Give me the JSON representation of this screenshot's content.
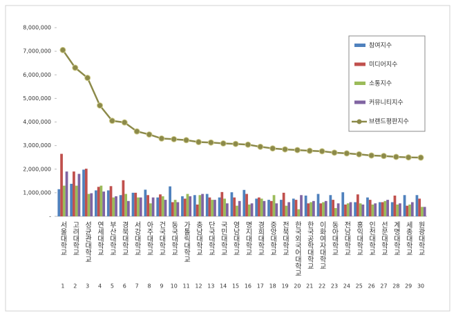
{
  "chart_data": {
    "type": "bar-line",
    "categories": [
      "서울대학교",
      "고려대학교",
      "성균관대학교",
      "연세대학교",
      "부산대학교",
      "경북대학교",
      "서강대학교",
      "아주대학교",
      "건국대학교",
      "동국대학교",
      "가톨릭대학교",
      "충남대학교",
      "단국대학교",
      "국민대학교",
      "영남대학교",
      "명지대학교",
      "경희대학교",
      "중앙대학교",
      "전북대학교",
      "한국외국어대학교",
      "한국공학대학교",
      "이화여자대학교",
      "동아대학교",
      "전남대학교",
      "홍익대학교",
      "인천대학교",
      "선문대학교",
      "계명대학교",
      "세종대학교",
      "원광대학교"
    ],
    "ranks": [
      1,
      2,
      3,
      4,
      5,
      6,
      7,
      8,
      9,
      10,
      11,
      12,
      13,
      14,
      15,
      16,
      17,
      18,
      19,
      20,
      21,
      22,
      23,
      24,
      25,
      26,
      27,
      28,
      29,
      30
    ],
    "series": [
      {
        "name": "참여지수",
        "type": "bar",
        "color": "#4f81bd",
        "values": [
          1150000,
          1380000,
          1980000,
          1100000,
          1100000,
          900000,
          1000000,
          1130000,
          800000,
          1270000,
          850000,
          900000,
          950000,
          800000,
          1020000,
          1120000,
          750000,
          700000,
          700000,
          750000,
          880000,
          950000,
          900000,
          1020000,
          600000,
          800000,
          600000,
          600000,
          900000,
          900000
        ]
      },
      {
        "name": "미디어지수",
        "type": "bar",
        "color": "#c0504d",
        "values": [
          2650000,
          1900000,
          2020000,
          1250000,
          1280000,
          1530000,
          1000000,
          900000,
          930000,
          600000,
          750000,
          500000,
          800000,
          1030000,
          800000,
          950000,
          800000,
          650000,
          1000000,
          700000,
          550000,
          550000,
          700000,
          500000,
          930000,
          700000,
          600000,
          880000,
          450000,
          750000
        ]
      },
      {
        "name": "소통지수",
        "type": "bar",
        "color": "#9bbb59",
        "values": [
          1300000,
          1300000,
          950000,
          1300000,
          800000,
          950000,
          800000,
          550000,
          850000,
          700000,
          950000,
          900000,
          700000,
          750000,
          450000,
          500000,
          750000,
          900000,
          450000,
          300000,
          600000,
          600000,
          350000,
          550000,
          550000,
          500000,
          650000,
          500000,
          500000,
          400000
        ]
      },
      {
        "name": "커뮤니티지수",
        "type": "bar",
        "color": "#8064a2",
        "values": [
          1900000,
          1800000,
          980000,
          1050000,
          850000,
          650000,
          800000,
          800000,
          700000,
          600000,
          850000,
          950000,
          700000,
          550000,
          650000,
          550000,
          650000,
          550000,
          600000,
          900000,
          650000,
          650000,
          550000,
          600000,
          500000,
          550000,
          700000,
          550000,
          600000,
          400000
        ]
      },
      {
        "name": "브랜드평판지수",
        "type": "line",
        "color": "#8c8a4a",
        "values": [
          7050000,
          6300000,
          5870000,
          4700000,
          4050000,
          3980000,
          3600000,
          3470000,
          3300000,
          3270000,
          3230000,
          3150000,
          3130000,
          3090000,
          3070000,
          3040000,
          2950000,
          2880000,
          2840000,
          2810000,
          2780000,
          2760000,
          2700000,
          2670000,
          2630000,
          2580000,
          2560000,
          2520000,
          2500000,
          2490000
        ]
      }
    ],
    "ylim": [
      0,
      8000000
    ],
    "yticks": [
      {
        "value": 0,
        "label": "-"
      },
      {
        "value": 1000000,
        "label": "1,000,000"
      },
      {
        "value": 2000000,
        "label": "2,000,000"
      },
      {
        "value": 3000000,
        "label": "3,000,000"
      },
      {
        "value": 4000000,
        "label": "4,000,000"
      },
      {
        "value": 5000000,
        "label": "5,000,000"
      },
      {
        "value": 6000000,
        "label": "6,000,000"
      },
      {
        "value": 7000000,
        "label": "7,000,000"
      },
      {
        "value": 8000000,
        "label": "8,000,000"
      }
    ],
    "grid": false,
    "legend": "upper right"
  }
}
